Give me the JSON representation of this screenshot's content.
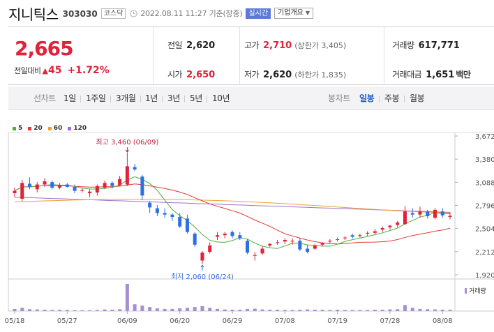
{
  "header": {
    "name": "지니틱스",
    "code": "303030",
    "market": "코스닥",
    "datetime": "2022.08.11 11:27 기준(장중)",
    "realtime": "실시간",
    "company_info": "기업개요"
  },
  "quote": {
    "price": "2,665",
    "change_label": "전일대비",
    "change_amount": "45",
    "change_percent": "+1.72%",
    "prev_close_label": "전일",
    "prev_close": "2,620",
    "high_label": "고가",
    "high": "2,710",
    "upper_limit": "(상한가 3,405)",
    "volume_label": "거래량",
    "volume": "617,771",
    "open_label": "시가",
    "open": "2,650",
    "low_label": "저가",
    "low": "2,620",
    "lower_limit": "(하한가 1,835)",
    "trade_value_label": "거래대금",
    "trade_value": "1,651",
    "trade_value_unit": "백만"
  },
  "period_tabs": {
    "label": "선차트",
    "items": [
      "1일",
      "1주일",
      "3개월",
      "1년",
      "3년",
      "5년",
      "10년"
    ],
    "active": "3개월"
  },
  "candle_tabs": {
    "label": "봉차트",
    "items": [
      "일봉",
      "주봉",
      "월봉"
    ],
    "active": "일봉"
  },
  "chart_data": {
    "type": "candlestick",
    "ma_legend": [
      {
        "name": "5",
        "color": "#4caf3a"
      },
      {
        "name": "20",
        "color": "#e53935"
      },
      {
        "name": "60",
        "color": "#f0a030"
      },
      {
        "name": "120",
        "color": "#a070d0"
      }
    ],
    "y_ticks": [
      "3,672",
      "3,380",
      "3,088",
      "2,796",
      "2,504",
      "2,212",
      "1,920"
    ],
    "ylim": [
      1920,
      3672
    ],
    "x_ticks": [
      {
        "label": "05/18",
        "index": 0
      },
      {
        "label": "05/27",
        "index": 7
      },
      {
        "label": "06/09",
        "index": 15
      },
      {
        "label": "06/20",
        "index": 22
      },
      {
        "label": "06/29",
        "index": 29
      },
      {
        "label": "07/08",
        "index": 36
      },
      {
        "label": "07/19",
        "index": 43
      },
      {
        "label": "07/28",
        "index": 50
      },
      {
        "label": "08/08",
        "index": 57
      }
    ],
    "high_annotation": {
      "label": "최고",
      "value": "3,460",
      "date": "(06/09)",
      "index": 15,
      "price": 3460
    },
    "low_annotation": {
      "label": "최저",
      "value": "2,060",
      "date": "(06/24)",
      "index": 25,
      "price": 2060
    },
    "candles": [
      {
        "o": 2950,
        "h": 3020,
        "l": 2900,
        "c": 2980
      },
      {
        "o": 2880,
        "h": 3120,
        "l": 2850,
        "c": 3080
      },
      {
        "o": 3070,
        "h": 3150,
        "l": 3000,
        "c": 3030
      },
      {
        "o": 3000,
        "h": 3090,
        "l": 2960,
        "c": 3060
      },
      {
        "o": 3060,
        "h": 3140,
        "l": 3030,
        "c": 3100
      },
      {
        "o": 3090,
        "h": 3110,
        "l": 3000,
        "c": 3020
      },
      {
        "o": 3020,
        "h": 3080,
        "l": 3000,
        "c": 3050
      },
      {
        "o": 3060,
        "h": 3080,
        "l": 3020,
        "c": 3030
      },
      {
        "o": 3030,
        "h": 3060,
        "l": 2950,
        "c": 2980
      },
      {
        "o": 2980,
        "h": 3010,
        "l": 2960,
        "c": 2990
      },
      {
        "o": 2950,
        "h": 3000,
        "l": 2900,
        "c": 2970
      },
      {
        "o": 2960,
        "h": 3060,
        "l": 2920,
        "c": 3040
      },
      {
        "o": 3020,
        "h": 3110,
        "l": 3000,
        "c": 3080
      },
      {
        "o": 3080,
        "h": 3100,
        "l": 3010,
        "c": 3040
      },
      {
        "o": 3050,
        "h": 3170,
        "l": 3040,
        "c": 3130
      },
      {
        "o": 3060,
        "h": 3460,
        "l": 3040,
        "c": 3290
      },
      {
        "o": 3280,
        "h": 3320,
        "l": 3230,
        "c": 3250
      },
      {
        "o": 3160,
        "h": 3180,
        "l": 2860,
        "c": 2920
      },
      {
        "o": 2830,
        "h": 2850,
        "l": 2700,
        "c": 2770
      },
      {
        "o": 2760,
        "h": 2800,
        "l": 2660,
        "c": 2700
      },
      {
        "o": 2700,
        "h": 2760,
        "l": 2640,
        "c": 2680
      },
      {
        "o": 2680,
        "h": 2700,
        "l": 2600,
        "c": 2650
      },
      {
        "o": 2650,
        "h": 2700,
        "l": 2510,
        "c": 2530
      },
      {
        "o": 2630,
        "h": 2680,
        "l": 2440,
        "c": 2460
      },
      {
        "o": 2440,
        "h": 2460,
        "l": 2270,
        "c": 2300
      },
      {
        "o": 2100,
        "h": 2220,
        "l": 2060,
        "c": 2200
      },
      {
        "o": 2210,
        "h": 2330,
        "l": 2190,
        "c": 2290
      },
      {
        "o": 2400,
        "h": 2460,
        "l": 2360,
        "c": 2420
      },
      {
        "o": 2420,
        "h": 2460,
        "l": 2380,
        "c": 2440
      },
      {
        "o": 2460,
        "h": 2480,
        "l": 2380,
        "c": 2410
      },
      {
        "o": 2420,
        "h": 2460,
        "l": 2360,
        "c": 2380
      },
      {
        "o": 2350,
        "h": 2370,
        "l": 2180,
        "c": 2200
      },
      {
        "o": 2160,
        "h": 2210,
        "l": 2100,
        "c": 2170
      },
      {
        "o": 2190,
        "h": 2280,
        "l": 2170,
        "c": 2250
      },
      {
        "o": 2290,
        "h": 2320,
        "l": 2270,
        "c": 2310
      },
      {
        "o": 2320,
        "h": 2360,
        "l": 2300,
        "c": 2330
      },
      {
        "o": 2340,
        "h": 2380,
        "l": 2310,
        "c": 2360
      },
      {
        "o": 2340,
        "h": 2380,
        "l": 2300,
        "c": 2350
      },
      {
        "o": 2350,
        "h": 2380,
        "l": 2220,
        "c": 2240
      },
      {
        "o": 2250,
        "h": 2300,
        "l": 2190,
        "c": 2210
      },
      {
        "o": 2250,
        "h": 2310,
        "l": 2230,
        "c": 2290
      },
      {
        "o": 2300,
        "h": 2330,
        "l": 2280,
        "c": 2320
      },
      {
        "o": 2340,
        "h": 2370,
        "l": 2320,
        "c": 2350
      },
      {
        "o": 2370,
        "h": 2390,
        "l": 2340,
        "c": 2360
      },
      {
        "o": 2380,
        "h": 2410,
        "l": 2360,
        "c": 2390
      },
      {
        "o": 2420,
        "h": 2440,
        "l": 2380,
        "c": 2400
      },
      {
        "o": 2410,
        "h": 2440,
        "l": 2390,
        "c": 2420
      },
      {
        "o": 2440,
        "h": 2470,
        "l": 2410,
        "c": 2450
      },
      {
        "o": 2450,
        "h": 2500,
        "l": 2430,
        "c": 2470
      },
      {
        "o": 2490,
        "h": 2530,
        "l": 2460,
        "c": 2510
      },
      {
        "o": 2520,
        "h": 2550,
        "l": 2490,
        "c": 2540
      },
      {
        "o": 2550,
        "h": 2600,
        "l": 2520,
        "c": 2580
      },
      {
        "o": 2560,
        "h": 2790,
        "l": 2550,
        "c": 2720
      },
      {
        "o": 2700,
        "h": 2760,
        "l": 2640,
        "c": 2680
      },
      {
        "o": 2680,
        "h": 2780,
        "l": 2640,
        "c": 2720
      },
      {
        "o": 2720,
        "h": 2740,
        "l": 2630,
        "c": 2660
      },
      {
        "o": 2640,
        "h": 2760,
        "l": 2620,
        "c": 2740
      },
      {
        "o": 2720,
        "h": 2760,
        "l": 2640,
        "c": 2670
      },
      {
        "o": 2650,
        "h": 2710,
        "l": 2620,
        "c": 2665
      }
    ],
    "volume_relative": [
      0.08,
      0.12,
      0.07,
      0.06,
      0.05,
      0.04,
      0.05,
      0.04,
      0.03,
      0.03,
      0.03,
      0.04,
      0.06,
      0.05,
      0.07,
      1.0,
      0.25,
      0.2,
      0.15,
      0.1,
      0.08,
      0.08,
      0.1,
      0.12,
      0.15,
      0.18,
      0.12,
      0.08,
      0.06,
      0.05,
      0.05,
      0.08,
      0.09,
      0.06,
      0.05,
      0.05,
      0.04,
      0.04,
      0.05,
      0.06,
      0.05,
      0.05,
      0.04,
      0.05,
      0.04,
      0.04,
      0.04,
      0.04,
      0.05,
      0.05,
      0.06,
      0.07,
      0.22,
      0.12,
      0.08,
      0.07,
      0.06,
      0.05,
      0.05
    ],
    "volume_label": "거래량"
  }
}
